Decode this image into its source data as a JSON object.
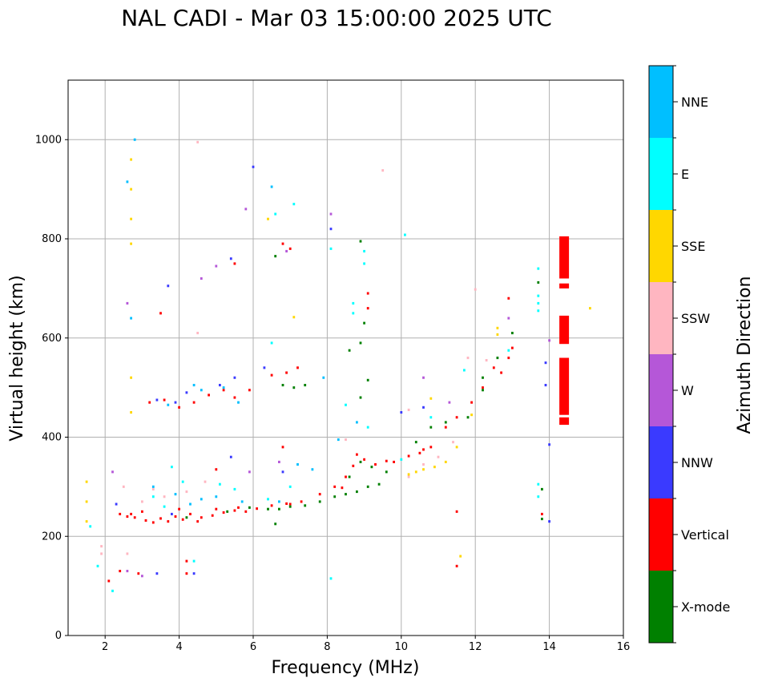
{
  "chart_data": {
    "type": "scatter",
    "title": "NAL CADI - Mar 03 15:00:00 2025 UTC",
    "xlabel": "Frequency (MHz)",
    "ylabel": "Virtual height (km)",
    "xlim": [
      1,
      16
    ],
    "ylim": [
      0,
      1120
    ],
    "xticks": [
      "2",
      "4",
      "6",
      "8",
      "10",
      "12",
      "14",
      "16"
    ],
    "yticks": [
      "0",
      "200",
      "400",
      "600",
      "800",
      "1000"
    ],
    "grid": true,
    "colorbar": {
      "label": "Azimuth Direction",
      "categories": [
        "X-mode",
        "Vertical",
        "NNW",
        "W",
        "SSW",
        "SSE",
        "E",
        "NNE"
      ],
      "colors": [
        "#008000",
        "#ff0000",
        "#3a3aff",
        "#b557d8",
        "#ffb6c1",
        "#ffd700",
        "#00ffff",
        "#00bfff"
      ]
    },
    "series": [
      {
        "name": "Vertical",
        "points": [
          [
            2.4,
            245
          ],
          [
            2.6,
            240
          ],
          [
            2.8,
            238
          ],
          [
            3.1,
            232
          ],
          [
            3.3,
            228
          ],
          [
            3.5,
            236
          ],
          [
            3.7,
            230
          ],
          [
            3.9,
            240
          ],
          [
            4.1,
            234
          ],
          [
            4.3,
            245
          ],
          [
            4.6,
            238
          ],
          [
            4.9,
            242
          ],
          [
            5.2,
            248
          ],
          [
            5.5,
            252
          ],
          [
            5.8,
            250
          ],
          [
            6.1,
            256
          ],
          [
            6.5,
            262
          ],
          [
            6.9,
            266
          ],
          [
            7.3,
            270
          ],
          [
            7.8,
            285
          ],
          [
            8.2,
            300
          ],
          [
            8.5,
            320
          ],
          [
            8.7,
            342
          ],
          [
            9.0,
            355
          ],
          [
            9.3,
            345
          ],
          [
            9.6,
            352
          ],
          [
            10.2,
            362
          ],
          [
            10.5,
            368
          ],
          [
            10.8,
            380
          ],
          [
            11.2,
            420
          ],
          [
            11.5,
            440
          ],
          [
            11.9,
            470
          ],
          [
            12.2,
            500
          ],
          [
            12.5,
            540
          ],
          [
            12.9,
            560
          ],
          [
            13.0,
            580
          ],
          [
            12.9,
            680
          ],
          [
            9.1,
            690
          ],
          [
            9.1,
            660
          ],
          [
            7.0,
            780
          ],
          [
            6.8,
            790
          ],
          [
            2.1,
            110
          ],
          [
            2.4,
            130
          ],
          [
            2.9,
            125
          ],
          [
            4.2,
            125
          ],
          [
            4.2,
            150
          ],
          [
            3.5,
            650
          ],
          [
            3.6,
            475
          ],
          [
            4.0,
            460
          ],
          [
            3.2,
            470
          ],
          [
            4.4,
            470
          ],
          [
            4.8,
            485
          ],
          [
            5.2,
            495
          ],
          [
            5.5,
            480
          ],
          [
            5.9,
            495
          ],
          [
            6.5,
            525
          ],
          [
            6.9,
            530
          ],
          [
            7.2,
            540
          ],
          [
            11.5,
            250
          ],
          [
            11.5,
            140
          ],
          [
            13.8,
            245
          ],
          [
            5.0,
            335
          ],
          [
            5.5,
            750
          ],
          [
            6.8,
            380
          ],
          [
            8.8,
            365
          ],
          [
            9.8,
            350
          ],
          [
            2.7,
            245
          ],
          [
            3.0,
            250
          ],
          [
            4.0,
            255
          ],
          [
            4.5,
            230
          ],
          [
            5.0,
            255
          ],
          [
            5.6,
            258
          ],
          [
            7.0,
            265
          ],
          [
            8.4,
            298
          ],
          [
            10.6,
            375
          ],
          [
            12.7,
            530
          ],
          [
            14.4,
            430
          ]
        ]
      },
      {
        "name": "X-mode",
        "points": [
          [
            6.4,
            255
          ],
          [
            6.7,
            255
          ],
          [
            7.0,
            260
          ],
          [
            7.4,
            262
          ],
          [
            7.8,
            270
          ],
          [
            8.2,
            280
          ],
          [
            8.5,
            285
          ],
          [
            8.8,
            290
          ],
          [
            9.1,
            300
          ],
          [
            9.4,
            305
          ],
          [
            8.6,
            320
          ],
          [
            8.9,
            350
          ],
          [
            9.2,
            340
          ],
          [
            9.6,
            330
          ],
          [
            10.4,
            390
          ],
          [
            10.8,
            420
          ],
          [
            11.2,
            430
          ],
          [
            11.8,
            440
          ],
          [
            12.2,
            520
          ],
          [
            12.6,
            560
          ],
          [
            13.0,
            610
          ],
          [
            8.6,
            575
          ],
          [
            8.9,
            590
          ],
          [
            9.0,
            630
          ],
          [
            9.1,
            515
          ],
          [
            8.9,
            480
          ],
          [
            6.8,
            505
          ],
          [
            7.1,
            500
          ],
          [
            7.4,
            505
          ],
          [
            6.6,
            225
          ],
          [
            13.8,
            235
          ],
          [
            13.8,
            295
          ],
          [
            8.9,
            795
          ],
          [
            6.6,
            765
          ],
          [
            13.7,
            712
          ],
          [
            12.2,
            495
          ],
          [
            4.2,
            238
          ],
          [
            5.3,
            250
          ],
          [
            5.9,
            258
          ]
        ]
      },
      {
        "name": "NNW",
        "points": [
          [
            3.4,
            475
          ],
          [
            3.9,
            470
          ],
          [
            4.2,
            490
          ],
          [
            5.1,
            505
          ],
          [
            5.5,
            520
          ],
          [
            6.3,
            540
          ],
          [
            6.8,
            330
          ],
          [
            5.4,
            360
          ],
          [
            3.7,
            705
          ],
          [
            5.4,
            760
          ],
          [
            6.0,
            945
          ],
          [
            8.1,
            820
          ],
          [
            13.9,
            505
          ],
          [
            13.9,
            550
          ],
          [
            14.0,
            385
          ],
          [
            14.0,
            230
          ],
          [
            3.8,
            245
          ],
          [
            4.4,
            125
          ],
          [
            3.4,
            125
          ],
          [
            2.3,
            265
          ],
          [
            10.0,
            450
          ],
          [
            10.6,
            460
          ]
        ]
      },
      {
        "name": "W",
        "points": [
          [
            5.0,
            745
          ],
          [
            5.8,
            860
          ],
          [
            6.9,
            775
          ],
          [
            8.1,
            850
          ],
          [
            12.9,
            640
          ],
          [
            14.0,
            595
          ],
          [
            11.3,
            470
          ],
          [
            10.6,
            520
          ],
          [
            6.7,
            350
          ],
          [
            4.6,
            720
          ],
          [
            3.0,
            120
          ],
          [
            2.2,
            330
          ],
          [
            2.6,
            670
          ],
          [
            5.9,
            330
          ],
          [
            2.6,
            130
          ]
        ]
      },
      {
        "name": "SSW",
        "points": [
          [
            3.0,
            270
          ],
          [
            3.3,
            295
          ],
          [
            2.5,
            300
          ],
          [
            3.6,
            280
          ],
          [
            4.2,
            290
          ],
          [
            4.7,
            310
          ],
          [
            10.2,
            320
          ],
          [
            10.6,
            345
          ],
          [
            11.0,
            360
          ],
          [
            11.4,
            390
          ],
          [
            11.8,
            560
          ],
          [
            12.0,
            698
          ],
          [
            9.5,
            938
          ],
          [
            4.5,
            610
          ],
          [
            4.5,
            995
          ],
          [
            1.9,
            165
          ],
          [
            1.9,
            180
          ],
          [
            2.6,
            165
          ],
          [
            12.3,
            555
          ],
          [
            10.2,
            455
          ],
          [
            8.5,
            395
          ]
        ]
      },
      {
        "name": "SSE",
        "points": [
          [
            1.5,
            230
          ],
          [
            1.5,
            310
          ],
          [
            1.5,
            270
          ],
          [
            2.7,
            450
          ],
          [
            2.7,
            520
          ],
          [
            2.7,
            790
          ],
          [
            2.7,
            840
          ],
          [
            2.7,
            900
          ],
          [
            2.7,
            960
          ],
          [
            10.2,
            325
          ],
          [
            10.4,
            330
          ],
          [
            10.6,
            335
          ],
          [
            10.9,
            340
          ],
          [
            11.2,
            350
          ],
          [
            11.5,
            380
          ],
          [
            11.9,
            445
          ],
          [
            12.6,
            607
          ],
          [
            12.6,
            620
          ],
          [
            15.1,
            660
          ],
          [
            11.6,
            160
          ],
          [
            6.4,
            840
          ],
          [
            10.8,
            478
          ],
          [
            7.1,
            642
          ]
        ]
      },
      {
        "name": "E",
        "points": [
          [
            1.8,
            140
          ],
          [
            2.2,
            90
          ],
          [
            3.8,
            340
          ],
          [
            4.1,
            310
          ],
          [
            3.3,
            280
          ],
          [
            3.6,
            260
          ],
          [
            5.1,
            305
          ],
          [
            5.5,
            295
          ],
          [
            6.4,
            275
          ],
          [
            7.0,
            300
          ],
          [
            8.1,
            115
          ],
          [
            8.1,
            780
          ],
          [
            7.1,
            870
          ],
          [
            6.6,
            850
          ],
          [
            6.5,
            590
          ],
          [
            8.7,
            670
          ],
          [
            8.7,
            650
          ],
          [
            9.0,
            750
          ],
          [
            9.0,
            775
          ],
          [
            9.1,
            420
          ],
          [
            10.0,
            355
          ],
          [
            13.7,
            740
          ],
          [
            13.7,
            685
          ],
          [
            13.7,
            670
          ],
          [
            13.7,
            655
          ],
          [
            13.7,
            305
          ],
          [
            13.7,
            280
          ],
          [
            12.9,
            575
          ],
          [
            11.7,
            535
          ],
          [
            10.8,
            440
          ],
          [
            4.4,
            150
          ],
          [
            8.5,
            465
          ],
          [
            10.1,
            808
          ],
          [
            1.6,
            220
          ]
        ]
      },
      {
        "name": "NNE",
        "points": [
          [
            3.3,
            300
          ],
          [
            3.9,
            285
          ],
          [
            4.3,
            265
          ],
          [
            4.6,
            275
          ],
          [
            5.0,
            280
          ],
          [
            5.7,
            270
          ],
          [
            6.7,
            270
          ],
          [
            7.2,
            345
          ],
          [
            7.6,
            335
          ],
          [
            7.9,
            520
          ],
          [
            5.2,
            500
          ],
          [
            4.4,
            505
          ],
          [
            2.8,
            1000
          ],
          [
            2.7,
            640
          ],
          [
            2.6,
            915
          ],
          [
            6.5,
            905
          ],
          [
            3.7,
            465
          ],
          [
            4.6,
            495
          ],
          [
            5.6,
            470
          ],
          [
            8.3,
            395
          ],
          [
            8.8,
            430
          ]
        ]
      }
    ],
    "wide_strip": {
      "name": "Vertical",
      "x": 14.4,
      "segments": [
        [
          425,
          440
        ],
        [
          445,
          560
        ],
        [
          588,
          645
        ],
        [
          700,
          710
        ],
        [
          720,
          805
        ]
      ]
    }
  }
}
